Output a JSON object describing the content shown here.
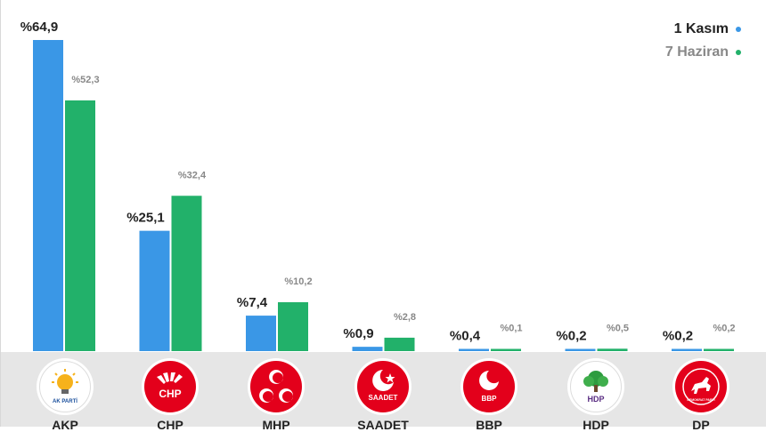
{
  "legend": {
    "current": {
      "label": "1 Kasım",
      "color": "#3a97e6"
    },
    "previous": {
      "label": "7 Haziran",
      "color": "#22b16a"
    }
  },
  "parties": [
    {
      "logo": "akp-logo",
      "logo_text": "AK PARTİ",
      "label": "AKP"
    },
    {
      "logo": "chp-logo",
      "logo_text": "CHP",
      "label": "CHP"
    },
    {
      "logo": "mhp-logo",
      "logo_text": "",
      "label": "MHP"
    },
    {
      "logo": "saadet-logo",
      "logo_text": "SAADET",
      "label": "SAADET"
    },
    {
      "logo": "bbp-logo",
      "logo_text": "BBP",
      "label": "BBP"
    },
    {
      "logo": "hdp-logo",
      "logo_text": "HDP",
      "label": "HDP"
    },
    {
      "logo": "dp-logo",
      "logo_text": "DEMOKRAT PARTİ",
      "label": "DP"
    }
  ],
  "chart_data": {
    "type": "bar",
    "categories": [
      "AKP",
      "CHP",
      "MHP",
      "SAADET",
      "BBP",
      "HDP",
      "DP"
    ],
    "series": [
      {
        "name": "1 Kasım",
        "values": [
          64.9,
          25.1,
          7.4,
          0.9,
          0.4,
          0.2,
          0.2
        ],
        "labels": [
          "%64,9",
          "%25,1",
          "%7,4",
          "%0,9",
          "%0,4",
          "%0,2",
          "%0,2"
        ],
        "color": "#3a97e6"
      },
      {
        "name": "7 Haziran",
        "values": [
          52.3,
          32.4,
          10.2,
          2.8,
          0.1,
          0.5,
          0.2
        ],
        "labels": [
          "%52,3",
          "%32,4",
          "%10,2",
          "%2,8",
          "%0,1",
          "%0,5",
          "%0,2"
        ],
        "color": "#22b16a"
      }
    ],
    "ylim": [
      0,
      70
    ],
    "grid": false,
    "legend_position": "top-right"
  }
}
